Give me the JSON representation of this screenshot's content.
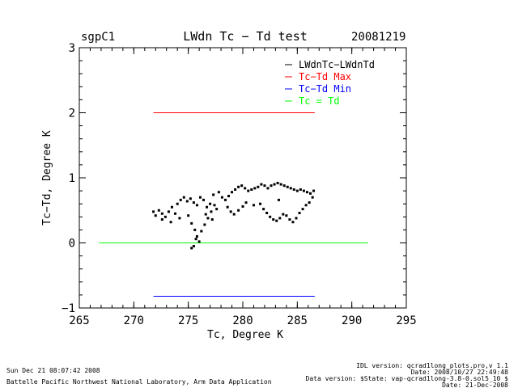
{
  "header": {
    "site": "sgpC1",
    "title": "LWdn Tc − Td test",
    "date": "20081219"
  },
  "footer": {
    "timestamp": "Sun Dec 21 08:07:42 2008",
    "organization": "Battelle Pacific Northwest National Laboratory, Arm Data Application",
    "idl_version": "IDL version: qcrad1long_plots.pro,v 1.1",
    "idl_date": "Date: 2008/10/27 22:49:48",
    "data_version": "Data version: $State: vap-qcrad1long-3.8-0.sol5_10 $",
    "data_date": "Date: 21-Dec-2008"
  },
  "chart_data": {
    "type": "scatter",
    "xlabel": "Tc, Degree K",
    "ylabel": "Tc−Td, Degree K",
    "xlim": [
      265,
      295
    ],
    "ylim": [
      -1,
      3
    ],
    "xticks": [
      "265",
      "270",
      "275",
      "280",
      "285",
      "290",
      "295"
    ],
    "yticks": [
      "−1",
      "0",
      "1",
      "2",
      "3"
    ],
    "legend_position": "top-right",
    "legend": [
      {
        "label": "LWdnTc−LWdnTd",
        "color": "#000000"
      },
      {
        "label": "Tc−Td Max",
        "color": "#ff0000"
      },
      {
        "label": "Tc−Td Min",
        "color": "#0000ff"
      },
      {
        "label": "Tc = Td",
        "color": "#00ff00"
      }
    ],
    "series": [
      {
        "name": "LWdnTc−LWdnTd",
        "color": "#000000",
        "points": [
          [
            271.8,
            0.48
          ],
          [
            272.0,
            0.42
          ],
          [
            272.3,
            0.5
          ],
          [
            272.6,
            0.45
          ],
          [
            272.9,
            0.4
          ],
          [
            273.2,
            0.48
          ],
          [
            273.5,
            0.55
          ],
          [
            273.8,
            0.45
          ],
          [
            274.0,
            0.6
          ],
          [
            274.3,
            0.66
          ],
          [
            274.6,
            0.7
          ],
          [
            274.9,
            0.64
          ],
          [
            275.2,
            0.68
          ],
          [
            275.5,
            0.62
          ],
          [
            275.8,
            0.58
          ],
          [
            276.1,
            0.7
          ],
          [
            276.4,
            0.66
          ],
          [
            276.7,
            0.55
          ],
          [
            277.0,
            0.6
          ],
          [
            277.3,
            0.74
          ],
          [
            275.0,
            0.42
          ],
          [
            275.3,
            0.3
          ],
          [
            275.6,
            0.2
          ],
          [
            275.8,
            0.1
          ],
          [
            276.0,
            0.02
          ],
          [
            275.5,
            -0.05
          ],
          [
            275.3,
            -0.08
          ],
          [
            275.7,
            0.06
          ],
          [
            276.2,
            0.18
          ],
          [
            276.5,
            0.28
          ],
          [
            276.8,
            0.38
          ],
          [
            277.1,
            0.48
          ],
          [
            277.4,
            0.58
          ],
          [
            277.6,
            0.52
          ],
          [
            277.8,
            0.78
          ],
          [
            278.1,
            0.7
          ],
          [
            278.4,
            0.66
          ],
          [
            278.7,
            0.72
          ],
          [
            279.0,
            0.78
          ],
          [
            279.3,
            0.82
          ],
          [
            279.6,
            0.86
          ],
          [
            279.9,
            0.88
          ],
          [
            280.2,
            0.84
          ],
          [
            280.5,
            0.8
          ],
          [
            280.8,
            0.82
          ],
          [
            281.1,
            0.84
          ],
          [
            281.4,
            0.86
          ],
          [
            281.7,
            0.9
          ],
          [
            282.0,
            0.88
          ],
          [
            282.3,
            0.84
          ],
          [
            282.6,
            0.88
          ],
          [
            282.9,
            0.9
          ],
          [
            283.2,
            0.92
          ],
          [
            283.5,
            0.9
          ],
          [
            283.8,
            0.88
          ],
          [
            284.1,
            0.86
          ],
          [
            284.4,
            0.84
          ],
          [
            284.7,
            0.82
          ],
          [
            285.0,
            0.8
          ],
          [
            285.3,
            0.82
          ],
          [
            285.6,
            0.8
          ],
          [
            285.9,
            0.78
          ],
          [
            286.2,
            0.76
          ],
          [
            286.5,
            0.8
          ],
          [
            278.6,
            0.55
          ],
          [
            278.9,
            0.48
          ],
          [
            279.2,
            0.44
          ],
          [
            279.6,
            0.5
          ],
          [
            280.0,
            0.56
          ],
          [
            280.3,
            0.62
          ],
          [
            281.6,
            0.6
          ],
          [
            281.9,
            0.52
          ],
          [
            282.2,
            0.46
          ],
          [
            282.5,
            0.4
          ],
          [
            282.8,
            0.36
          ],
          [
            283.1,
            0.34
          ],
          [
            283.4,
            0.38
          ],
          [
            283.7,
            0.44
          ],
          [
            284.0,
            0.42
          ],
          [
            284.3,
            0.36
          ],
          [
            284.6,
            0.32
          ],
          [
            284.9,
            0.38
          ],
          [
            285.2,
            0.46
          ],
          [
            285.5,
            0.52
          ],
          [
            285.8,
            0.58
          ],
          [
            286.1,
            0.62
          ],
          [
            286.4,
            0.7
          ],
          [
            272.6,
            0.36
          ],
          [
            273.4,
            0.32
          ],
          [
            274.2,
            0.38
          ],
          [
            276.6,
            0.44
          ],
          [
            277.2,
            0.36
          ],
          [
            281.0,
            0.58
          ],
          [
            283.3,
            0.66
          ]
        ]
      },
      {
        "name": "Tc−Td Max",
        "color": "#ff0000",
        "x": [
          271.8,
          286.6
        ],
        "y": [
          2.0,
          2.0
        ]
      },
      {
        "name": "Tc−Td Min",
        "color": "#0000ff",
        "x": [
          271.8,
          286.6
        ],
        "y": [
          -0.82,
          -0.82
        ]
      },
      {
        "name": "Tc = Td",
        "color": "#00ff00",
        "x": [
          266.8,
          291.5
        ],
        "y": [
          0.0,
          0.0
        ]
      }
    ]
  }
}
